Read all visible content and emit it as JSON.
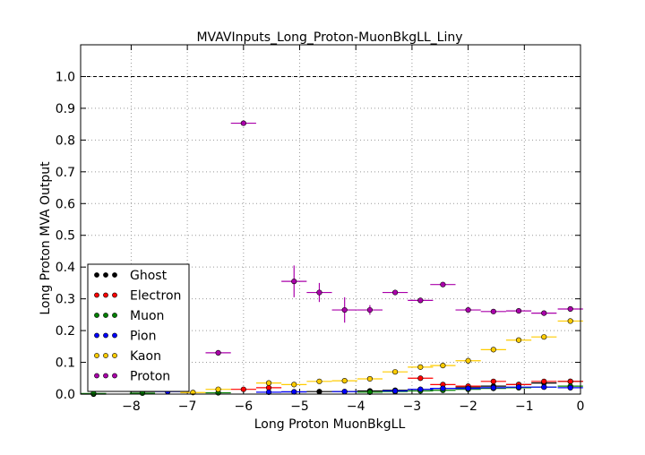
{
  "chart_data": {
    "type": "scatter",
    "title": "MVAVInputs_Long_Proton-MuonBkgLL_Liny",
    "xlabel": "Long Proton MuonBkgLL",
    "ylabel": "Long Proton MVA Output",
    "xlim": [
      -8.9,
      0
    ],
    "ylim": [
      0,
      1.1
    ],
    "xticks": [
      -8,
      -7,
      -6,
      -5,
      -4,
      -3,
      -2,
      -1,
      0
    ],
    "yticks": [
      0.0,
      0.1,
      0.2,
      0.3,
      0.4,
      0.5,
      0.6,
      0.7,
      0.8,
      0.9,
      1.0
    ],
    "grid": true,
    "reference_line": 1.0,
    "legend_position": "lower-left",
    "series": [
      {
        "name": "Ghost",
        "color": "#000000",
        "points": [
          {
            "x": -8.67,
            "y": 0.0
          },
          {
            "x": -7.8,
            "y": 0.008
          },
          {
            "x": -7.35,
            "y": 0.01
          },
          {
            "x": -5.1,
            "y": 0.007
          },
          {
            "x": -4.65,
            "y": 0.008
          },
          {
            "x": -4.2,
            "y": 0.008
          },
          {
            "x": -3.75,
            "y": 0.01
          },
          {
            "x": -3.3,
            "y": 0.012
          },
          {
            "x": -2.85,
            "y": 0.015
          },
          {
            "x": -2.45,
            "y": 0.018
          },
          {
            "x": -2.0,
            "y": 0.022
          },
          {
            "x": -1.55,
            "y": 0.025
          },
          {
            "x": -1.1,
            "y": 0.03
          },
          {
            "x": -0.65,
            "y": 0.035
          },
          {
            "x": -0.18,
            "y": 0.04
          }
        ]
      },
      {
        "name": "Electron",
        "color": "#ff0000",
        "points": [
          {
            "x": -6.0,
            "y": 0.015
          },
          {
            "x": -5.55,
            "y": 0.02
          },
          {
            "x": -2.85,
            "y": 0.05
          },
          {
            "x": -2.45,
            "y": 0.03
          },
          {
            "x": -2.0,
            "y": 0.025
          },
          {
            "x": -1.55,
            "y": 0.04
          },
          {
            "x": -1.1,
            "y": 0.03
          },
          {
            "x": -0.65,
            "y": 0.04
          },
          {
            "x": -0.18,
            "y": 0.04
          }
        ]
      },
      {
        "name": "Muon",
        "color": "#008000",
        "points": [
          {
            "x": -8.67,
            "y": 0.002
          },
          {
            "x": -7.8,
            "y": 0.003
          },
          {
            "x": -6.45,
            "y": 0.004
          },
          {
            "x": -3.75,
            "y": 0.006
          },
          {
            "x": -3.3,
            "y": 0.008
          },
          {
            "x": -2.85,
            "y": 0.01
          },
          {
            "x": -2.45,
            "y": 0.012
          },
          {
            "x": -2.0,
            "y": 0.015
          },
          {
            "x": -1.55,
            "y": 0.018
          },
          {
            "x": -1.1,
            "y": 0.02
          },
          {
            "x": -0.65,
            "y": 0.022
          },
          {
            "x": -0.18,
            "y": 0.025
          }
        ]
      },
      {
        "name": "Pion",
        "color": "#0000ff",
        "points": [
          {
            "x": -7.35,
            "y": 0.008
          },
          {
            "x": -5.55,
            "y": 0.006
          },
          {
            "x": -5.1,
            "y": 0.007
          },
          {
            "x": -4.2,
            "y": 0.008
          },
          {
            "x": -3.3,
            "y": 0.01
          },
          {
            "x": -2.85,
            "y": 0.015
          },
          {
            "x": -2.45,
            "y": 0.018
          },
          {
            "x": -2.0,
            "y": 0.018
          },
          {
            "x": -1.55,
            "y": 0.02
          },
          {
            "x": -1.1,
            "y": 0.022
          },
          {
            "x": -0.65,
            "y": 0.022
          },
          {
            "x": -0.18,
            "y": 0.02
          }
        ]
      },
      {
        "name": "Kaon",
        "color": "#ffcc00",
        "points": [
          {
            "x": -6.9,
            "y": 0.005
          },
          {
            "x": -6.45,
            "y": 0.015
          },
          {
            "x": -5.55,
            "y": 0.035
          },
          {
            "x": -5.1,
            "y": 0.03
          },
          {
            "x": -4.65,
            "y": 0.04
          },
          {
            "x": -4.2,
            "y": 0.042
          },
          {
            "x": -3.75,
            "y": 0.048
          },
          {
            "x": -3.3,
            "y": 0.07
          },
          {
            "x": -2.85,
            "y": 0.085
          },
          {
            "x": -2.45,
            "y": 0.09
          },
          {
            "x": -2.0,
            "y": 0.105
          },
          {
            "x": -1.55,
            "y": 0.14
          },
          {
            "x": -1.1,
            "y": 0.17
          },
          {
            "x": -0.65,
            "y": 0.18
          },
          {
            "x": -0.18,
            "y": 0.23
          }
        ]
      },
      {
        "name": "Proton",
        "color": "#aa00aa",
        "points": [
          {
            "x": -6.45,
            "y": 0.13,
            "yerr": 0.004
          },
          {
            "x": -6.0,
            "y": 0.853,
            "yerr": 0.004
          },
          {
            "x": -5.1,
            "y": 0.355,
            "yerr": 0.05
          },
          {
            "x": -4.65,
            "y": 0.32,
            "yerr": 0.03
          },
          {
            "x": -4.2,
            "y": 0.265,
            "yerr": 0.04
          },
          {
            "x": -3.75,
            "y": 0.265,
            "yerr": 0.015
          },
          {
            "x": -3.3,
            "y": 0.32,
            "yerr": 0.005
          },
          {
            "x": -2.85,
            "y": 0.295,
            "yerr": 0.004
          },
          {
            "x": -2.45,
            "y": 0.345,
            "yerr": 0.004
          },
          {
            "x": -2.0,
            "y": 0.265,
            "yerr": 0.003
          },
          {
            "x": -1.55,
            "y": 0.26,
            "yerr": 0.003
          },
          {
            "x": -1.1,
            "y": 0.262,
            "yerr": 0.003
          },
          {
            "x": -0.65,
            "y": 0.255,
            "yerr": 0.003
          },
          {
            "x": -0.18,
            "y": 0.268,
            "yerr": 0.003
          }
        ]
      }
    ]
  }
}
